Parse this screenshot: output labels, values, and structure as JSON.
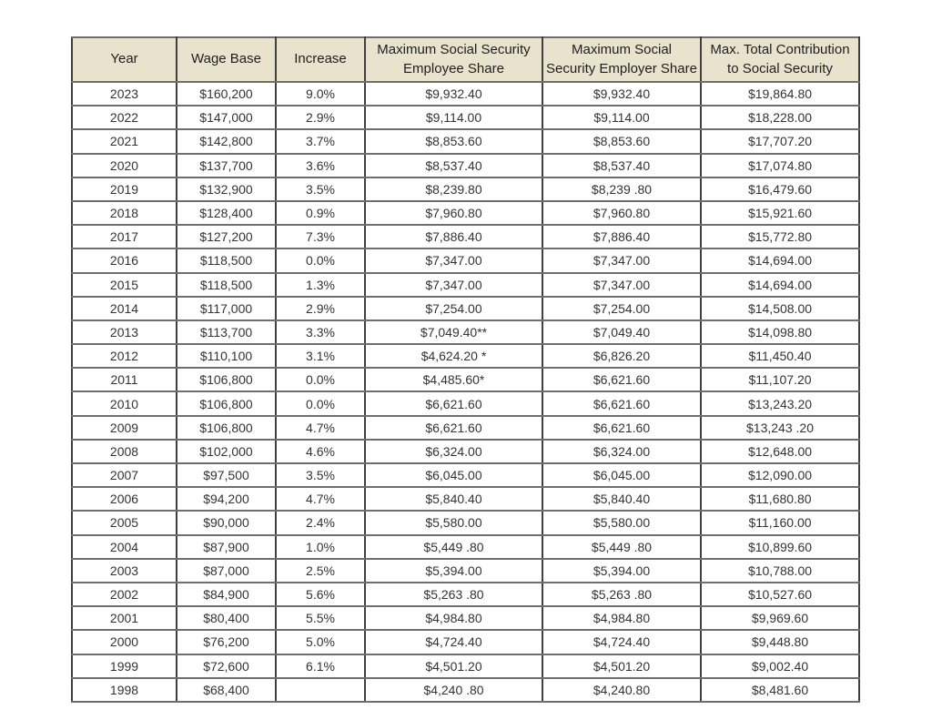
{
  "colors": {
    "page_background": "#ffffff",
    "header_background": "#e9e2cc",
    "border_vertical": "#3f3f3f",
    "border_horizontal": "#6e6e6e",
    "text": "#333333"
  },
  "chart_data": {
    "type": "table",
    "title": "",
    "columns": [
      "Year",
      "Wage Base",
      "Increase",
      "Maximum Social Security\nEmployee Share",
      "Maximum Social\nSecurity Employer Share",
      "Max. Total Contribution\nto Social Security"
    ],
    "rows": [
      [
        "2023",
        "$160,200",
        "9.0%",
        "$9,932.40",
        "$9,932.40",
        "$19,864.80"
      ],
      [
        "2022",
        "$147,000",
        "2.9%",
        "$9,114.00",
        "$9,114.00",
        "$18,228.00"
      ],
      [
        "2021",
        "$142,800",
        "3.7%",
        "$8,853.60",
        "$8,853.60",
        "$17,707.20"
      ],
      [
        "2020",
        "$137,700",
        "3.6%",
        "$8,537.40",
        "$8,537.40",
        "$17,074.80"
      ],
      [
        "2019",
        "$132,900",
        "3.5%",
        "$8,239.80",
        "$8,239 .80",
        "$16,479.60"
      ],
      [
        "2018",
        "$128,400",
        "0.9%",
        "$7,960.80",
        "$7,960.80",
        "$15,921.60"
      ],
      [
        "2017",
        "$127,200",
        "7.3%",
        "$7,886.40",
        "$7,886.40",
        "$15,772.80"
      ],
      [
        "2016",
        "$118,500",
        "0.0%",
        "$7,347.00",
        "$7,347.00",
        "$14,694.00"
      ],
      [
        "2015",
        "$118,500",
        "1.3%",
        "$7,347.00",
        "$7,347.00",
        "$14,694.00"
      ],
      [
        "2014",
        "$117,000",
        "2.9%",
        "$7,254.00",
        "$7,254.00",
        "$14,508.00"
      ],
      [
        "2013",
        "$113,700",
        "3.3%",
        "$7,049.40**",
        "$7,049.40",
        "$14,098.80"
      ],
      [
        "2012",
        "$110,100",
        "3.1%",
        "$4,624.20 *",
        "$6,826.20",
        "$11,450.40"
      ],
      [
        "2011",
        "$106,800",
        "0.0%",
        "$4,485.60*",
        "$6,621.60",
        "$11,107.20"
      ],
      [
        "2010",
        "$106,800",
        "0.0%",
        "$6,621.60",
        "$6,621.60",
        "$13,243.20"
      ],
      [
        "2009",
        "$106,800",
        "4.7%",
        "$6,621.60",
        "$6,621.60",
        "$13,243 .20"
      ],
      [
        "2008",
        "$102,000",
        "4.6%",
        "$6,324.00",
        "$6,324.00",
        "$12,648.00"
      ],
      [
        "2007",
        "$97,500",
        "3.5%",
        "$6,045.00",
        "$6,045.00",
        "$12,090.00"
      ],
      [
        "2006",
        "$94,200",
        "4.7%",
        "$5,840.40",
        "$5,840.40",
        "$11,680.80"
      ],
      [
        "2005",
        "$90,000",
        "2.4%",
        "$5,580.00",
        "$5,580.00",
        "$11,160.00"
      ],
      [
        "2004",
        "$87,900",
        "1.0%",
        "$5,449 .80",
        "$5,449 .80",
        "$10,899.60"
      ],
      [
        "2003",
        "$87,000",
        "2.5%",
        "$5,394.00",
        "$5,394.00",
        "$10,788.00"
      ],
      [
        "2002",
        "$84,900",
        "5.6%",
        "$5,263 .80",
        "$5,263 .80",
        "$10,527.60"
      ],
      [
        "2001",
        "$80,400",
        "5.5%",
        "$4,984.80",
        "$4,984.80",
        "$9,969.60"
      ],
      [
        "2000",
        "$76,200",
        "5.0%",
        "$4,724.40",
        "$4,724.40",
        "$9,448.80"
      ],
      [
        "1999",
        "$72,600",
        "6.1%",
        "$4,501.20",
        "$4,501.20",
        "$9,002.40"
      ],
      [
        "1998",
        "$68,400",
        "",
        "$4,240 .80",
        "$4,240.80",
        "$8,481.60"
      ]
    ]
  }
}
